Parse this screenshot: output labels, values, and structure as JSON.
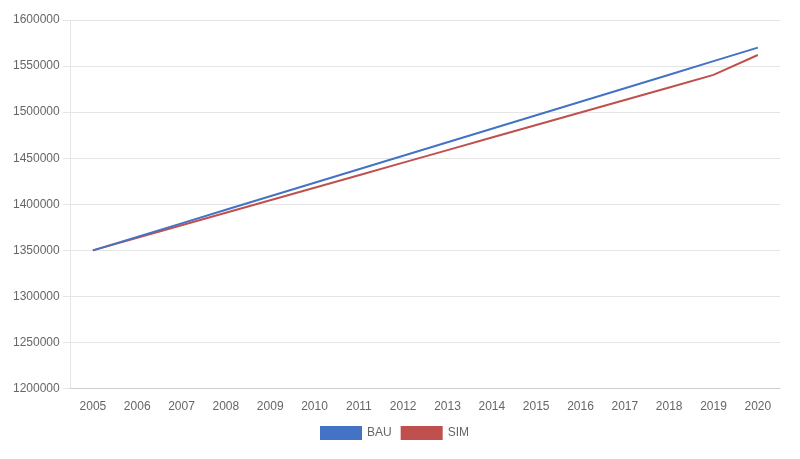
{
  "chart_data": {
    "type": "line",
    "x": [
      2005,
      2006,
      2007,
      2008,
      2009,
      2010,
      2011,
      2012,
      2013,
      2014,
      2015,
      2016,
      2017,
      2018,
      2019,
      2020
    ],
    "series": [
      {
        "name": "BAU",
        "color": "#4472C4",
        "values": [
          1350000,
          1364667,
          1379333,
          1394000,
          1408667,
          1423333,
          1438000,
          1452667,
          1467333,
          1482000,
          1496667,
          1511333,
          1526000,
          1540667,
          1555333,
          1570000
        ]
      },
      {
        "name": "SIM",
        "color": "#C0504D",
        "values": [
          1350000,
          1363600,
          1377200,
          1390800,
          1404400,
          1418000,
          1431600,
          1445200,
          1458800,
          1472400,
          1486000,
          1499600,
          1513200,
          1526800,
          1540400,
          1562000
        ]
      }
    ],
    "xlim": [
      2004.5,
      2020.5
    ],
    "xticks": [
      2005,
      2006,
      2007,
      2008,
      2009,
      2010,
      2011,
      2012,
      2013,
      2014,
      2015,
      2016,
      2017,
      2018,
      2019,
      2020
    ],
    "ylim": [
      1200000,
      1600000
    ],
    "yticks": [
      1200000,
      1250000,
      1300000,
      1350000,
      1400000,
      1450000,
      1500000,
      1550000,
      1600000
    ],
    "grid": true,
    "legend": "bottom"
  }
}
